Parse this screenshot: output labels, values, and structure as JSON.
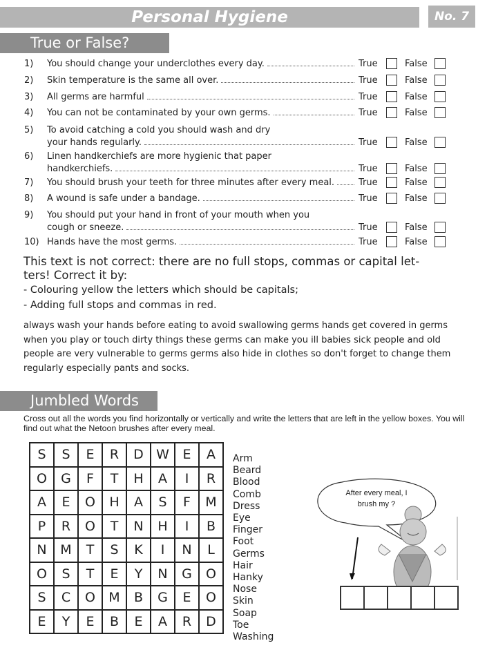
{
  "header": {
    "title": "Personal Hygiene",
    "number": "No. 7"
  },
  "true_false": {
    "heading": "True or False?",
    "true_label": "True",
    "false_label": "False",
    "questions": [
      {
        "num": "1)",
        "lines": [
          "You should change your underclothes every day."
        ]
      },
      {
        "num": "2)",
        "lines": [
          "Skin temperature is the same all over."
        ]
      },
      {
        "num": "3)",
        "lines": [
          "All germs are harmful"
        ]
      },
      {
        "num": "4)",
        "lines": [
          "You can not be contaminated by your own germs."
        ]
      },
      {
        "num": "5)",
        "lines": [
          "To avoid catching a cold you should wash and dry",
          "your hands regularly."
        ]
      },
      {
        "num": "6)",
        "lines": [
          "Linen handkerchiefs are more hygienic that paper",
          "handkerchiefs."
        ]
      },
      {
        "num": "7)",
        "lines": [
          "You should brush your teeth for three minutes after every meal."
        ]
      },
      {
        "num": "8)",
        "lines": [
          "A wound is safe under a bandage."
        ]
      },
      {
        "num": "9)",
        "lines": [
          "You should put your hand in front of your mouth when you",
          "cough or sneeze."
        ]
      },
      {
        "num": "10)",
        "lines": [
          "Hands have the most germs."
        ]
      }
    ]
  },
  "correction": {
    "instruction_lines": [
      "This text is not correct: there are no full stops, commas or capital let-",
      "ters! Correct it by:",
      "- Colouring yellow the letters which should be capitals;",
      "- Adding full stops and commas in red."
    ],
    "text": "always wash your hands before eating to avoid swallowing germs hands get covered in germs when you play or touch dirty things these germs can make you ill babies sick people and old people are very vulnerable to germs germs also hide in clothes so don't forget to change them regularly especially pants and socks."
  },
  "jumbled": {
    "heading": "Jumbled Words",
    "instruction": "Cross out all the words you find horizontally or vertically and write the letters that are left in the yellow boxes. You will find out what the Netoon brushes after every meal.",
    "grid": [
      [
        "S",
        "S",
        "E",
        "R",
        "D",
        "W",
        "E",
        "A"
      ],
      [
        "O",
        "G",
        "F",
        "T",
        "H",
        "A",
        "I",
        "R"
      ],
      [
        "A",
        "E",
        "O",
        "H",
        "A",
        "S",
        "F",
        "M"
      ],
      [
        "P",
        "R",
        "O",
        "T",
        "N",
        "H",
        "I",
        "B"
      ],
      [
        "N",
        "M",
        "T",
        "S",
        "K",
        "I",
        "N",
        "L"
      ],
      [
        "O",
        "S",
        "T",
        "E",
        "Y",
        "N",
        "G",
        "O"
      ],
      [
        "S",
        "C",
        "O",
        "M",
        "B",
        "G",
        "E",
        "O"
      ],
      [
        "E",
        "Y",
        "E",
        "B",
        "E",
        "A",
        "R",
        "D"
      ]
    ],
    "words": [
      "Arm",
      "Beard",
      "Blood",
      "Comb",
      "Dress",
      "Eye",
      "Finger",
      "Foot",
      "Germs",
      "Hair",
      "Hanky",
      "Nose",
      "Skin",
      "Soap",
      "Toe",
      "Washing"
    ],
    "bubble_lines": [
      "After every meal, I",
      "brush my ?"
    ],
    "answer_box_count": 5
  }
}
